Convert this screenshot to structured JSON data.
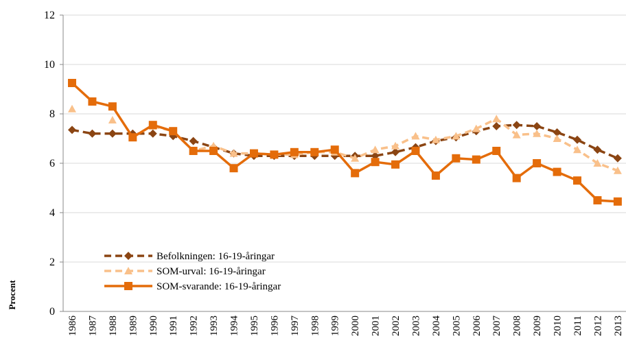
{
  "chart_data": {
    "type": "line",
    "y_label": "Procent",
    "categories": [
      "1986",
      "1987",
      "1988",
      "1989",
      "1990",
      "1991",
      "1992",
      "1993",
      "1994",
      "1995",
      "1996",
      "1997",
      "1998",
      "1999",
      "2000",
      "2001",
      "2002",
      "2003",
      "2004",
      "2005",
      "2006",
      "2007",
      "2008",
      "2009",
      "2010",
      "2011",
      "2012",
      "2013"
    ],
    "series": [
      {
        "name": "Befolkningen: 16-19-åringar",
        "color": "#8b4513",
        "dash": true,
        "marker": "diamond",
        "values": [
          7.35,
          7.2,
          7.2,
          7.2,
          7.2,
          7.1,
          6.9,
          6.65,
          6.4,
          6.3,
          6.3,
          6.3,
          6.3,
          6.3,
          6.3,
          6.3,
          6.45,
          6.65,
          6.9,
          7.05,
          7.3,
          7.5,
          7.55,
          7.5,
          7.25,
          6.95,
          6.55,
          6.2
        ]
      },
      {
        "name": "SOM-urval: 16-19-åringar",
        "color": "#f9c08a",
        "dash": true,
        "marker": "triangle",
        "values": [
          8.2,
          null,
          7.75,
          null,
          7.5,
          7.3,
          6.5,
          6.7,
          6.4,
          6.4,
          6.35,
          6.35,
          6.45,
          6.45,
          6.2,
          6.55,
          6.7,
          7.1,
          6.95,
          7.1,
          7.4,
          7.8,
          7.15,
          7.2,
          7.0,
          6.55,
          6.0,
          5.7
        ]
      },
      {
        "name": "SOM-svarande: 16-19-åringar",
        "color": "#e46c0a",
        "dash": false,
        "marker": "square",
        "values": [
          9.25,
          8.5,
          8.3,
          7.05,
          7.55,
          7.3,
          6.5,
          6.5,
          5.8,
          6.4,
          6.35,
          6.45,
          6.45,
          6.55,
          5.6,
          6.05,
          5.95,
          6.5,
          5.5,
          6.2,
          6.15,
          6.5,
          5.4,
          6.0,
          5.65,
          5.3,
          4.5,
          4.45
        ]
      }
    ],
    "ylim": [
      0,
      12
    ],
    "yticks": [
      0,
      2,
      4,
      6,
      8,
      10,
      12
    ],
    "grid": true
  }
}
